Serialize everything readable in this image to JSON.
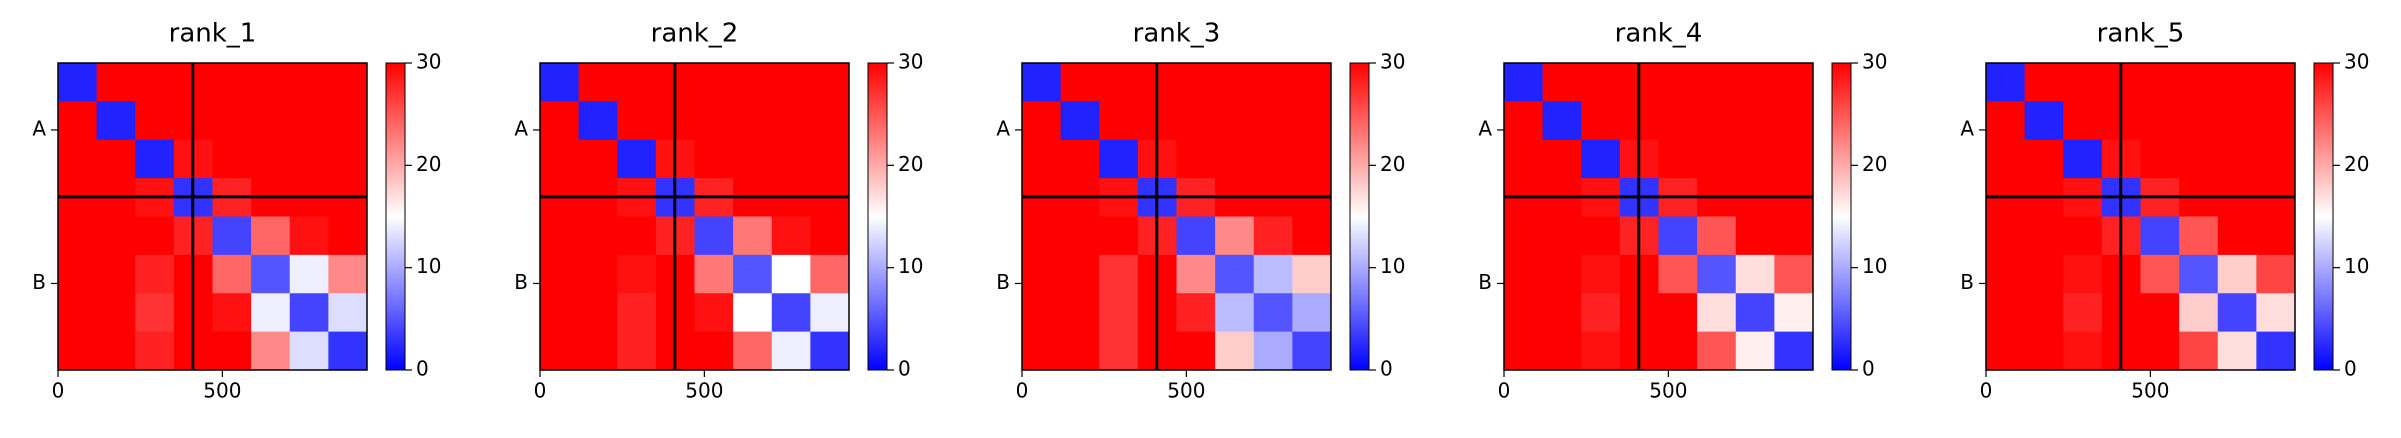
{
  "chart_data": [
    {
      "type": "heatmap",
      "title": "rank_1",
      "xlim": [
        0,
        940
      ],
      "ylim": [
        0,
        940
      ],
      "y_inverted": true,
      "xticks": [
        0,
        500
      ],
      "yticks": [
        {
          "value": 205,
          "label": "A"
        },
        {
          "value": 675,
          "label": "B"
        }
      ],
      "chain_breaks": [
        410
      ],
      "clim": [
        0,
        30
      ],
      "colorbar_ticks": [
        0,
        10,
        20,
        30
      ],
      "colormap": [
        "#0000ff",
        "#ffffff",
        "#ff0000"
      ],
      "values": [
        [
          2,
          30,
          30,
          30,
          30,
          30,
          30,
          30
        ],
        [
          30,
          2,
          30,
          30,
          30,
          30,
          30,
          30
        ],
        [
          30,
          30,
          2,
          29,
          30,
          30,
          30,
          30
        ],
        [
          30,
          30,
          29,
          3,
          28,
          30,
          30,
          30
        ],
        [
          30,
          30,
          30,
          28,
          4,
          24,
          29,
          30
        ],
        [
          30,
          30,
          28,
          30,
          24,
          5,
          14,
          22
        ],
        [
          30,
          30,
          27,
          30,
          29,
          14,
          4,
          13
        ],
        [
          30,
          30,
          28,
          30,
          30,
          22,
          13,
          3
        ]
      ]
    },
    {
      "type": "heatmap",
      "title": "rank_2",
      "xlim": [
        0,
        940
      ],
      "ylim": [
        0,
        940
      ],
      "y_inverted": true,
      "xticks": [
        0,
        500
      ],
      "yticks": [
        {
          "value": 205,
          "label": "A"
        },
        {
          "value": 675,
          "label": "B"
        }
      ],
      "chain_breaks": [
        410
      ],
      "clim": [
        0,
        30
      ],
      "colorbar_ticks": [
        0,
        10,
        20,
        30
      ],
      "colormap": [
        "#0000ff",
        "#ffffff",
        "#ff0000"
      ],
      "values": [
        [
          2,
          30,
          30,
          30,
          30,
          30,
          30,
          30
        ],
        [
          30,
          2,
          30,
          30,
          30,
          30,
          30,
          30
        ],
        [
          30,
          30,
          2,
          29,
          30,
          30,
          30,
          30
        ],
        [
          30,
          30,
          29,
          3,
          28,
          30,
          30,
          30
        ],
        [
          30,
          30,
          30,
          28,
          4,
          23,
          29,
          30
        ],
        [
          30,
          30,
          29,
          30,
          23,
          5,
          15,
          24
        ],
        [
          30,
          30,
          28,
          30,
          29,
          15,
          4,
          14
        ],
        [
          30,
          30,
          28,
          30,
          30,
          24,
          14,
          3
        ]
      ]
    },
    {
      "type": "heatmap",
      "title": "rank_3",
      "xlim": [
        0,
        940
      ],
      "ylim": [
        0,
        940
      ],
      "y_inverted": true,
      "xticks": [
        0,
        500
      ],
      "yticks": [
        {
          "value": 205,
          "label": "A"
        },
        {
          "value": 675,
          "label": "B"
        }
      ],
      "chain_breaks": [
        410
      ],
      "clim": [
        0,
        30
      ],
      "colorbar_ticks": [
        0,
        10,
        20,
        30
      ],
      "colormap": [
        "#0000ff",
        "#ffffff",
        "#ff0000"
      ],
      "values": [
        [
          2,
          30,
          30,
          30,
          30,
          30,
          30,
          30
        ],
        [
          30,
          2,
          30,
          30,
          30,
          30,
          30,
          30
        ],
        [
          30,
          30,
          2,
          29,
          30,
          30,
          30,
          30
        ],
        [
          30,
          30,
          29,
          3,
          28,
          30,
          30,
          30
        ],
        [
          30,
          30,
          30,
          28,
          4,
          22,
          28,
          30
        ],
        [
          30,
          30,
          27,
          30,
          22,
          5,
          11,
          18
        ],
        [
          30,
          30,
          27,
          30,
          28,
          11,
          5,
          10
        ],
        [
          30,
          30,
          27,
          30,
          30,
          18,
          10,
          4
        ]
      ]
    },
    {
      "type": "heatmap",
      "title": "rank_4",
      "xlim": [
        0,
        940
      ],
      "ylim": [
        0,
        940
      ],
      "y_inverted": true,
      "xticks": [
        0,
        500
      ],
      "yticks": [
        {
          "value": 205,
          "label": "A"
        },
        {
          "value": 675,
          "label": "B"
        }
      ],
      "chain_breaks": [
        410
      ],
      "clim": [
        0,
        30
      ],
      "colorbar_ticks": [
        0,
        10,
        20,
        30
      ],
      "colormap": [
        "#0000ff",
        "#ffffff",
        "#ff0000"
      ],
      "values": [
        [
          2,
          30,
          30,
          30,
          30,
          30,
          30,
          30
        ],
        [
          30,
          2,
          30,
          30,
          30,
          30,
          30,
          30
        ],
        [
          30,
          30,
          2,
          29,
          30,
          30,
          30,
          30
        ],
        [
          30,
          30,
          29,
          3,
          28,
          30,
          30,
          30
        ],
        [
          30,
          30,
          30,
          28,
          4,
          25,
          30,
          30
        ],
        [
          30,
          30,
          29,
          30,
          25,
          5,
          17,
          25
        ],
        [
          30,
          30,
          28,
          30,
          30,
          17,
          4,
          16
        ],
        [
          30,
          30,
          29,
          30,
          30,
          25,
          16,
          3
        ]
      ]
    },
    {
      "type": "heatmap",
      "title": "rank_5",
      "xlim": [
        0,
        940
      ],
      "ylim": [
        0,
        940
      ],
      "y_inverted": true,
      "xticks": [
        0,
        500
      ],
      "yticks": [
        {
          "value": 205,
          "label": "A"
        },
        {
          "value": 675,
          "label": "B"
        }
      ],
      "chain_breaks": [
        410
      ],
      "clim": [
        0,
        30
      ],
      "colorbar_ticks": [
        0,
        10,
        20,
        30
      ],
      "colormap": [
        "#0000ff",
        "#ffffff",
        "#ff0000"
      ],
      "values": [
        [
          2,
          30,
          30,
          30,
          30,
          30,
          30,
          30
        ],
        [
          30,
          2,
          30,
          30,
          30,
          30,
          30,
          30
        ],
        [
          30,
          30,
          2,
          29,
          30,
          30,
          30,
          30
        ],
        [
          30,
          30,
          29,
          3,
          28,
          30,
          30,
          30
        ],
        [
          30,
          30,
          30,
          28,
          4,
          25,
          30,
          30
        ],
        [
          30,
          30,
          29,
          30,
          25,
          5,
          18,
          26
        ],
        [
          30,
          30,
          28,
          30,
          30,
          18,
          4,
          17
        ],
        [
          30,
          30,
          29,
          30,
          30,
          26,
          17,
          3
        ]
      ]
    }
  ]
}
